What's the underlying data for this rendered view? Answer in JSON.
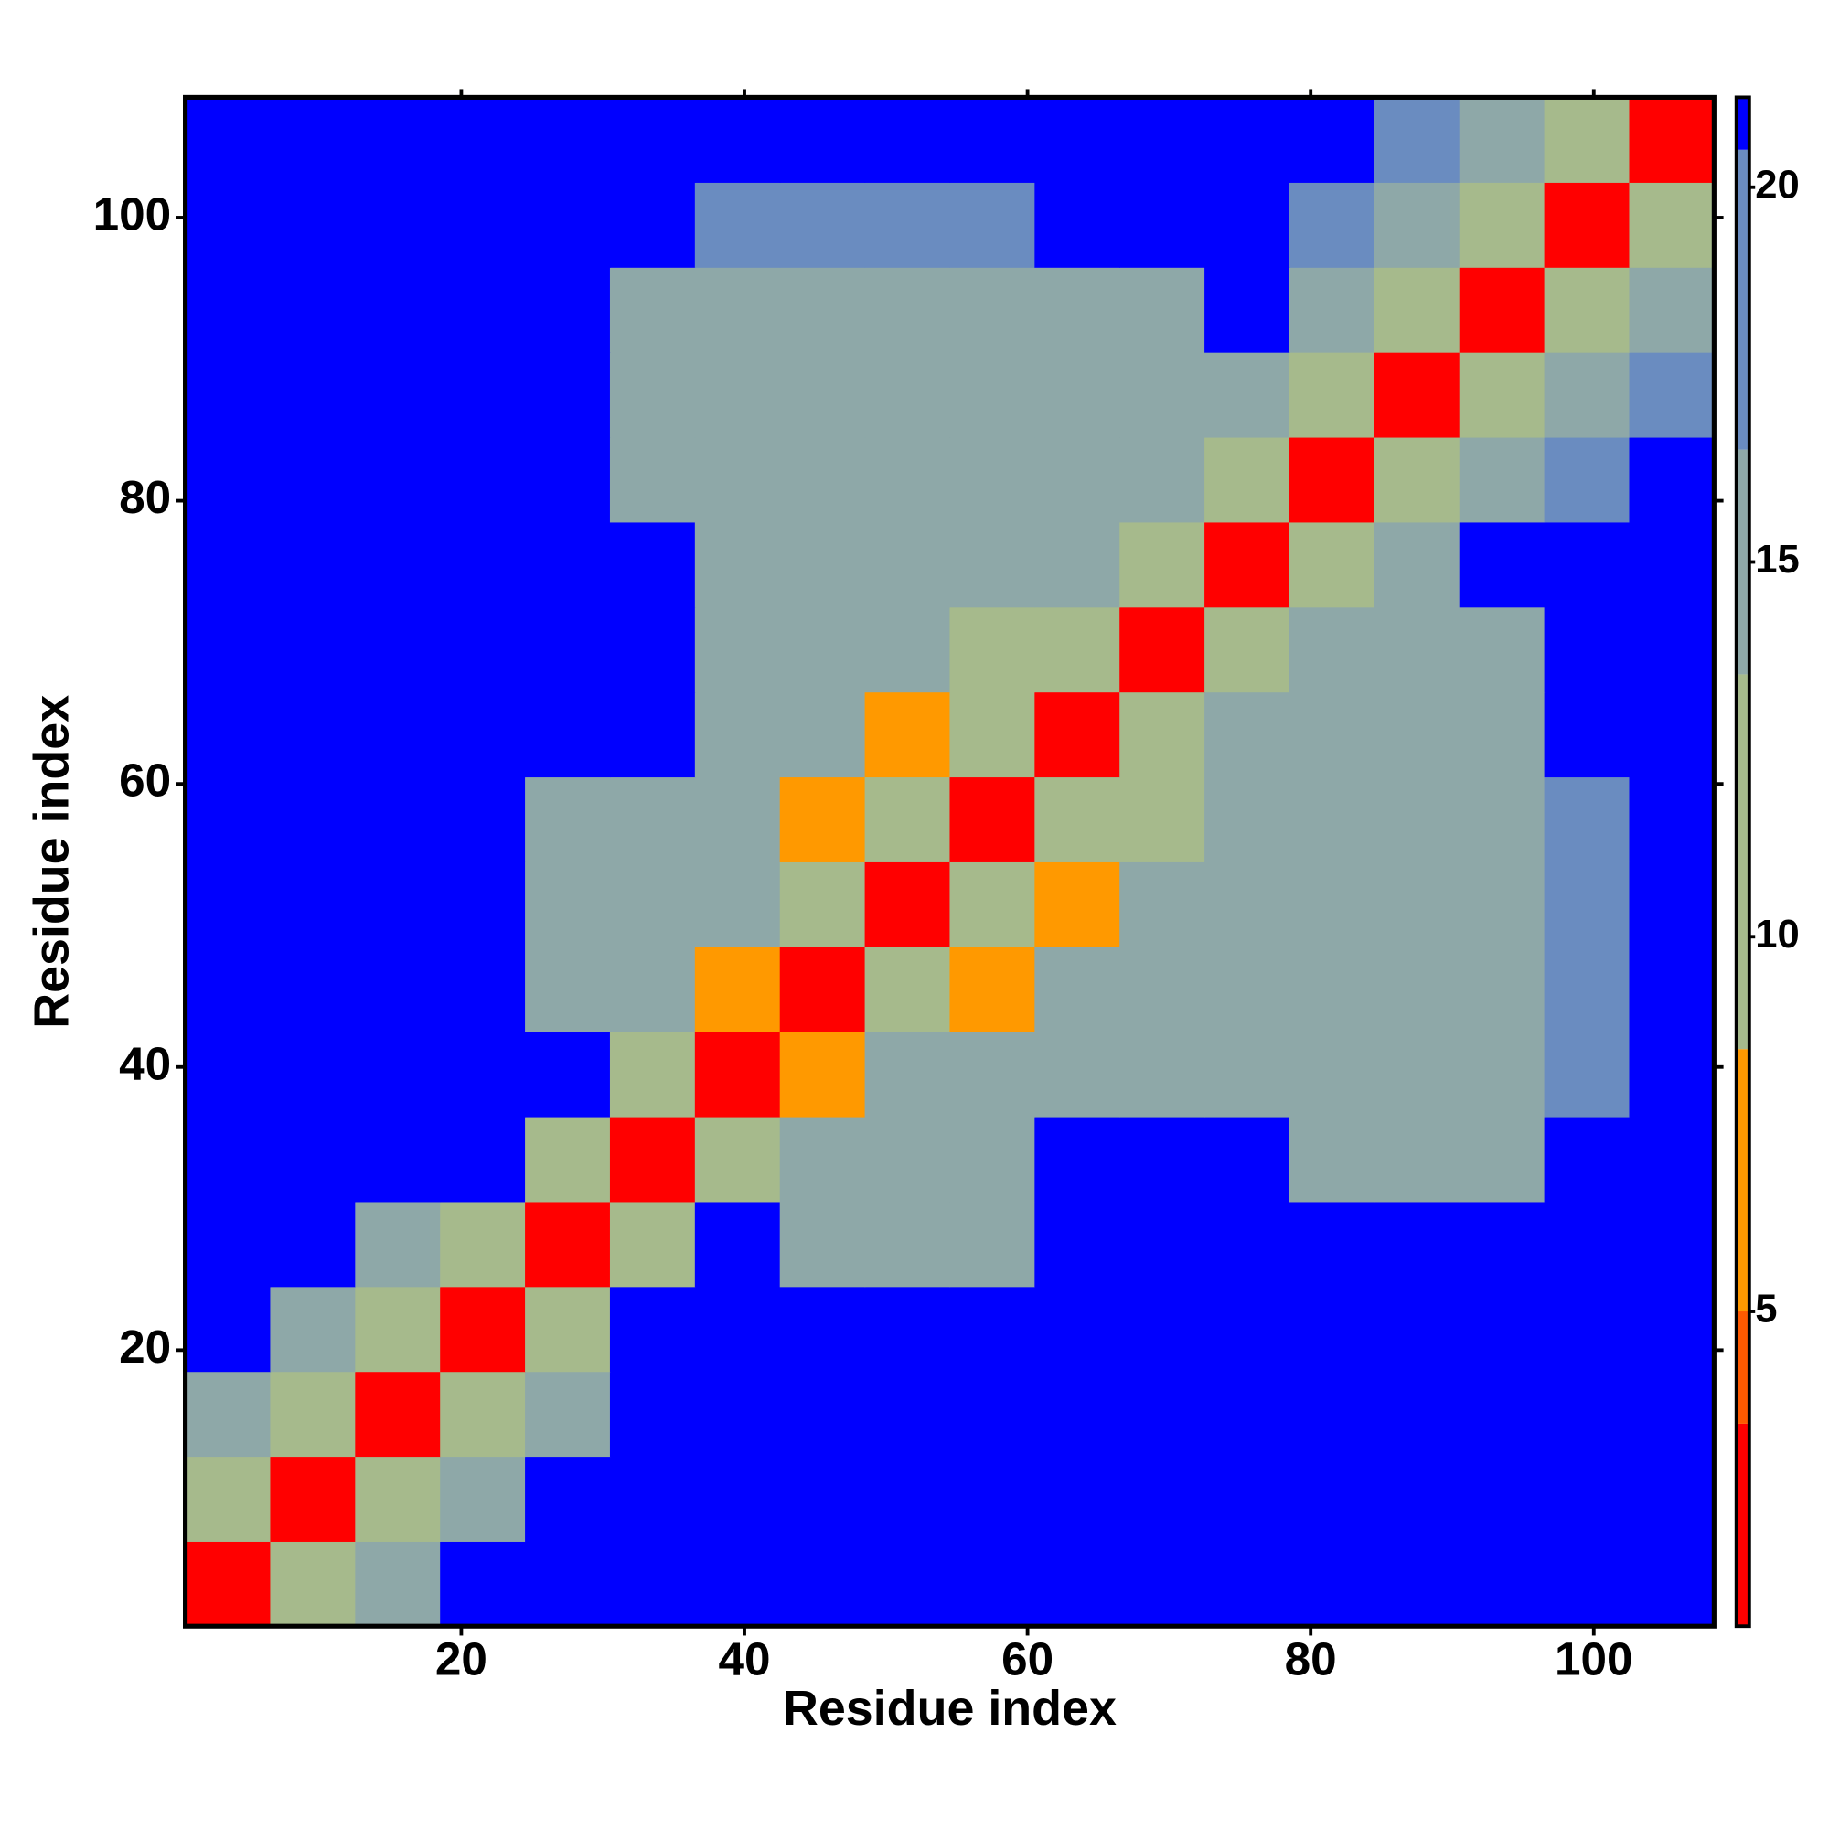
{
  "chart_data": {
    "type": "heatmap",
    "xlabel": "Residue index",
    "ylabel": "Residue index",
    "xlim": [
      0.5,
      108.5
    ],
    "ylim": [
      0.5,
      108.5
    ],
    "xticks": [
      20,
      40,
      60,
      80,
      100
    ],
    "yticks": [
      20,
      40,
      60,
      80,
      100
    ],
    "xbins": [
      0.5,
      6.5,
      12.5,
      18.5,
      24.5,
      30.5,
      36.5,
      42.5,
      48.5,
      54.5,
      60.5,
      66.5,
      72.5,
      78.5,
      84.5,
      90.5,
      96.5,
      102.5,
      108.5
    ],
    "ybins": [
      0.5,
      6.5,
      12.5,
      18.5,
      24.5,
      30.5,
      36.5,
      42.5,
      48.5,
      54.5,
      60.5,
      66.5,
      72.5,
      78.5,
      84.5,
      90.5,
      96.5,
      102.5,
      108.5
    ],
    "z": [
      [
        3,
        9,
        15,
        21,
        21,
        21,
        21,
        21,
        21,
        21,
        21,
        21,
        21,
        21,
        21,
        21,
        21,
        21
      ],
      [
        9,
        3,
        9,
        15,
        21,
        21,
        21,
        21,
        21,
        21,
        21,
        21,
        21,
        21,
        21,
        21,
        21,
        21
      ],
      [
        15,
        9,
        3,
        9,
        15,
        21,
        21,
        21,
        21,
        21,
        21,
        21,
        21,
        21,
        21,
        21,
        21,
        21
      ],
      [
        21,
        15,
        9,
        3,
        9,
        21,
        21,
        21,
        21,
        21,
        21,
        21,
        21,
        21,
        21,
        21,
        21,
        21
      ],
      [
        21,
        21,
        15,
        9,
        3,
        13,
        21,
        15,
        15,
        15,
        21,
        21,
        21,
        21,
        21,
        21,
        21,
        21
      ],
      [
        21,
        21,
        21,
        21,
        13,
        3,
        13,
        15,
        15,
        15,
        21,
        21,
        21,
        16,
        16,
        16,
        21,
        21
      ],
      [
        21,
        21,
        21,
        21,
        21,
        13,
        3,
        7,
        15,
        15,
        14,
        14,
        15,
        16,
        16,
        16,
        18,
        21
      ],
      [
        21,
        21,
        21,
        21,
        15,
        15,
        7,
        3,
        13,
        7,
        14,
        14,
        15,
        16,
        16,
        16,
        18,
        21
      ],
      [
        21,
        21,
        21,
        21,
        15,
        15,
        15,
        13,
        3,
        13,
        8,
        14,
        15,
        16,
        16,
        16,
        18,
        21
      ],
      [
        21,
        21,
        21,
        21,
        15,
        15,
        15,
        7,
        13,
        3,
        13,
        13,
        15,
        16,
        16,
        16,
        18,
        21
      ],
      [
        21,
        21,
        21,
        21,
        21,
        21,
        14,
        14,
        8,
        13,
        3,
        13,
        15,
        16,
        16,
        16,
        21,
        21
      ],
      [
        21,
        21,
        21,
        21,
        21,
        21,
        14,
        14,
        14,
        13,
        13,
        3,
        13,
        16,
        16,
        16,
        21,
        21
      ],
      [
        21,
        21,
        21,
        21,
        21,
        21,
        15,
        15,
        15,
        15,
        15,
        13,
        3,
        13,
        14,
        21,
        21,
        21
      ],
      [
        21,
        21,
        21,
        21,
        21,
        16,
        16,
        16,
        16,
        16,
        16,
        16,
        13,
        3,
        9,
        15,
        18,
        21
      ],
      [
        21,
        21,
        21,
        21,
        21,
        16,
        16,
        16,
        16,
        16,
        16,
        16,
        14,
        9,
        3,
        9,
        15,
        18
      ],
      [
        21,
        21,
        21,
        21,
        21,
        16,
        16,
        16,
        16,
        16,
        16,
        16,
        21,
        15,
        9,
        3,
        9,
        15
      ],
      [
        21,
        21,
        21,
        21,
        21,
        21,
        18,
        18,
        18,
        18,
        21,
        21,
        21,
        18,
        15,
        9,
        3,
        9
      ],
      [
        21,
        21,
        21,
        21,
        21,
        21,
        21,
        21,
        21,
        21,
        21,
        21,
        21,
        21,
        18,
        15,
        9,
        3
      ]
    ],
    "clim": [
      0.8,
      21.2
    ],
    "cticks": [
      5,
      10,
      15,
      20
    ],
    "colorscale": [
      {
        "max": 3.5,
        "color": "#ff0000"
      },
      {
        "max": 5,
        "color": "#ff5a00"
      },
      {
        "max": 8.5,
        "color": "#ff9900"
      },
      {
        "max": 13.5,
        "color": "#a6ba8c"
      },
      {
        "max": 16.5,
        "color": "#8ea8a8"
      },
      {
        "max": 20.5,
        "color": "#6a8cc0"
      },
      {
        "max": 21.2,
        "color": "#0000ff"
      }
    ]
  }
}
